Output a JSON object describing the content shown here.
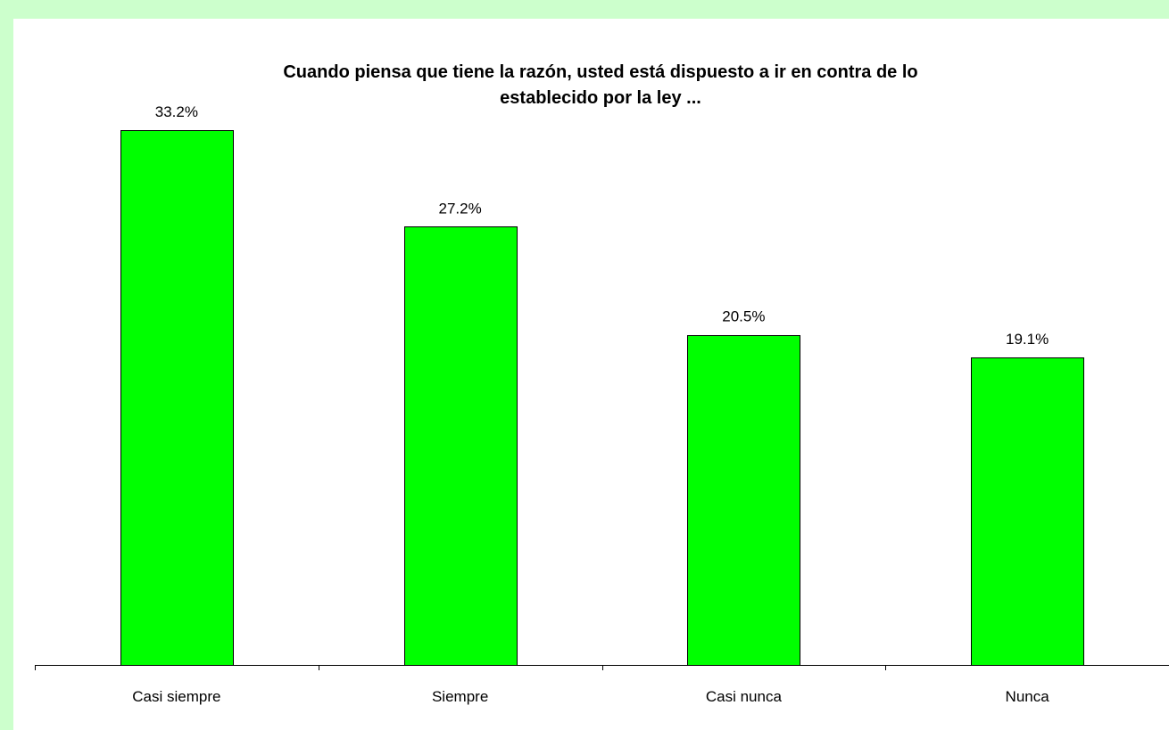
{
  "chart_data": {
    "type": "bar",
    "title_lines": [
      "Cuando piensa que tiene la razón, usted está dispuesto a ir en contra de lo",
      "establecido por la ley ..."
    ],
    "categories": [
      "Casi siempre",
      "Siempre",
      "Casi nunca",
      "Nunca"
    ],
    "values": [
      33.2,
      27.2,
      20.5,
      19.1
    ],
    "value_labels": [
      "33.2%",
      "27.2%",
      "20.5%",
      "19.1%"
    ],
    "unit": "%",
    "xlabel": "",
    "ylabel": "",
    "ylim": [
      0,
      33.2
    ],
    "grid": false,
    "legend": "none",
    "bar_color": "#00ff00",
    "bar_border_color": "#000000",
    "background_color": "#ffffff",
    "frame_color": "#ccffcc"
  }
}
